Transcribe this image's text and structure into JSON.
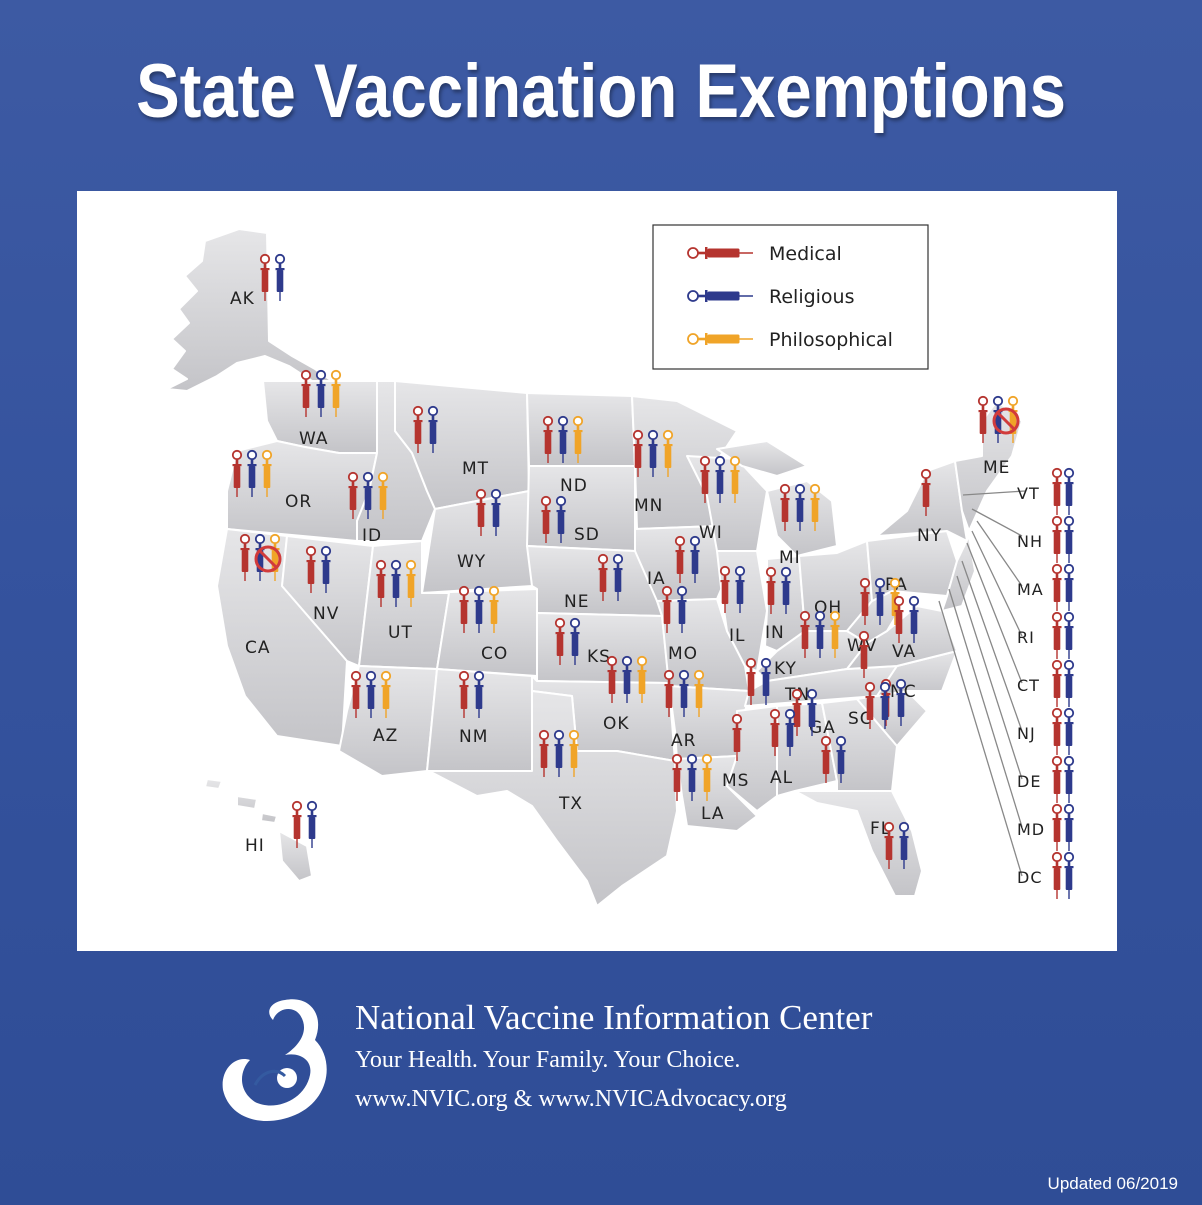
{
  "title": "State Vaccination Exemptions",
  "legend": [
    {
      "label": "Medical",
      "color": "#b5342f",
      "ring": "#c9302c"
    },
    {
      "label": "Religious",
      "color": "#2e3a8c",
      "ring": "#2e3a8c"
    },
    {
      "label": "Philosophical",
      "color": "#f0a428",
      "ring": "#f0a428"
    }
  ],
  "states": {
    "AK": {
      "label": "AK",
      "exemptions": [
        "medical",
        "religious"
      ]
    },
    "WA": {
      "label": "WA",
      "exemptions": [
        "medical",
        "religious",
        "philosophical"
      ]
    },
    "OR": {
      "label": "OR",
      "exemptions": [
        "medical",
        "religious",
        "philosophical"
      ]
    },
    "ID": {
      "label": "ID",
      "exemptions": [
        "medical",
        "religious",
        "philosophical"
      ]
    },
    "MT": {
      "label": "MT",
      "exemptions": [
        "medical",
        "religious"
      ]
    },
    "ND": {
      "label": "ND",
      "exemptions": [
        "medical",
        "religious",
        "philosophical"
      ]
    },
    "MN": {
      "label": "MN",
      "exemptions": [
        "medical",
        "religious",
        "philosophical"
      ]
    },
    "WI": {
      "label": "WI",
      "exemptions": [
        "medical",
        "religious",
        "philosophical"
      ]
    },
    "MI": {
      "label": "MI",
      "exemptions": [
        "medical",
        "religious",
        "philosophical"
      ]
    },
    "NY": {
      "label": "NY",
      "exemptions": [
        "medical"
      ]
    },
    "ME": {
      "label": "ME",
      "exemptions": [
        "medical",
        "religious-banned",
        "philosophical-banned"
      ]
    },
    "CA": {
      "label": "CA",
      "exemptions": [
        "medical",
        "religious-banned",
        "philosophical-banned"
      ]
    },
    "NV": {
      "label": "NV",
      "exemptions": [
        "medical",
        "religious"
      ]
    },
    "UT": {
      "label": "UT",
      "exemptions": [
        "medical",
        "religious",
        "philosophical"
      ]
    },
    "WY": {
      "label": "WY",
      "exemptions": [
        "medical",
        "religious"
      ]
    },
    "SD": {
      "label": "SD",
      "exemptions": [
        "medical",
        "religious"
      ]
    },
    "NE": {
      "label": "NE",
      "exemptions": [
        "medical",
        "religious"
      ]
    },
    "IA": {
      "label": "IA",
      "exemptions": [
        "medical",
        "religious"
      ]
    },
    "CO": {
      "label": "CO",
      "exemptions": [
        "medical",
        "religious",
        "philosophical"
      ]
    },
    "KS": {
      "label": "KS",
      "exemptions": [
        "medical",
        "religious"
      ]
    },
    "MO": {
      "label": "MO",
      "exemptions": [
        "medical",
        "religious"
      ]
    },
    "IL": {
      "label": "IL",
      "exemptions": [
        "medical",
        "religious"
      ]
    },
    "IN": {
      "label": "IN",
      "exemptions": [
        "medical",
        "religious"
      ]
    },
    "OH": {
      "label": "OH",
      "exemptions": [
        "medical",
        "religious",
        "philosophical"
      ]
    },
    "PA": {
      "label": "PA",
      "exemptions": [
        "medical",
        "religious",
        "philosophical"
      ]
    },
    "WV": {
      "label": "WV",
      "exemptions": [
        "medical"
      ]
    },
    "VA": {
      "label": "VA",
      "exemptions": [
        "medical",
        "religious"
      ]
    },
    "KY": {
      "label": "KY",
      "exemptions": [
        "medical",
        "religious"
      ]
    },
    "TN": {
      "label": "TN",
      "exemptions": [
        "medical",
        "religious"
      ]
    },
    "NC": {
      "label": "NC",
      "exemptions": [
        "medical",
        "religious"
      ]
    },
    "SC": {
      "label": "SC",
      "exemptions": [
        "medical",
        "religious"
      ]
    },
    "AZ": {
      "label": "AZ",
      "exemptions": [
        "medical",
        "religious",
        "philosophical"
      ]
    },
    "NM": {
      "label": "NM",
      "exemptions": [
        "medical",
        "religious"
      ]
    },
    "OK": {
      "label": "OK",
      "exemptions": [
        "medical",
        "religious",
        "philosophical"
      ]
    },
    "AR": {
      "label": "AR",
      "exemptions": [
        "medical",
        "religious",
        "philosophical"
      ]
    },
    "MS": {
      "label": "MS",
      "exemptions": [
        "medical"
      ]
    },
    "AL": {
      "label": "AL",
      "exemptions": [
        "medical",
        "religious"
      ]
    },
    "GA": {
      "label": "GA",
      "exemptions": [
        "medical",
        "religious"
      ]
    },
    "TX": {
      "label": "TX",
      "exemptions": [
        "medical",
        "religious",
        "philosophical"
      ]
    },
    "LA": {
      "label": "LA",
      "exemptions": [
        "medical",
        "religious",
        "philosophical"
      ]
    },
    "FL": {
      "label": "FL",
      "exemptions": [
        "medical",
        "religious"
      ]
    },
    "HI": {
      "label": "HI",
      "exemptions": [
        "medical",
        "religious"
      ]
    }
  },
  "small_states": [
    {
      "label": "VT",
      "exemptions": [
        "medical",
        "religious"
      ]
    },
    {
      "label": "NH",
      "exemptions": [
        "medical",
        "religious"
      ]
    },
    {
      "label": "MA",
      "exemptions": [
        "medical",
        "religious"
      ]
    },
    {
      "label": "RI",
      "exemptions": [
        "medical",
        "religious"
      ]
    },
    {
      "label": "CT",
      "exemptions": [
        "medical",
        "religious"
      ]
    },
    {
      "label": "NJ",
      "exemptions": [
        "medical",
        "religious"
      ]
    },
    {
      "label": "DE",
      "exemptions": [
        "medical",
        "religious"
      ]
    },
    {
      "label": "MD",
      "exemptions": [
        "medical",
        "religious"
      ]
    },
    {
      "label": "DC",
      "exemptions": [
        "medical",
        "religious"
      ]
    }
  ],
  "footer": {
    "org": "National Vaccine Information Center",
    "tagline": "Your Health. Your Family. Your Choice.",
    "urls": "www.NVIC.org & www.NVICAdvocacy.org",
    "logo": "nvic-mother-child-logo"
  },
  "updated": "Updated 06/2019"
}
